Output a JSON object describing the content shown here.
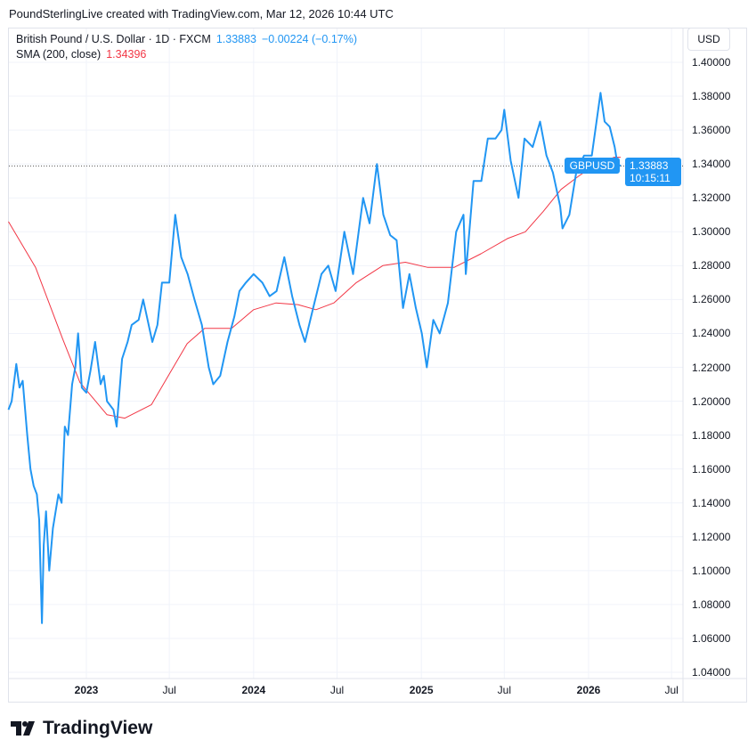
{
  "header": {
    "credit": "PoundSterlingLive created with TradingView.com, Mar 12, 2026 10:44 UTC"
  },
  "legend": {
    "instrument": "British Pound / U.S. Dollar · 1D · FXCM",
    "last": "1.33883",
    "change": "−0.00224 (−0.17%)",
    "indicator": "SMA (200, close)",
    "indicator_value": "1.34396"
  },
  "axis": {
    "currency": "USD"
  },
  "price_label": {
    "symbol": "GBPUSD",
    "price": "1.33883",
    "countdown": "10:15:11"
  },
  "logo": {
    "text": "TradingView"
  },
  "colors": {
    "price": "#2196f3",
    "sma": "#f23645",
    "grid": "#f0f3fa"
  },
  "chart_data": {
    "type": "line",
    "title": "British Pound / U.S. Dollar · 1D · FXCM",
    "ylim": [
      1.04,
      1.4
    ],
    "y_scale": "linear",
    "grid": true,
    "y_ticks": [
      "1.40000",
      "1.38000",
      "1.36000",
      "1.34000",
      "1.32000",
      "1.30000",
      "1.28000",
      "1.26000",
      "1.24000",
      "1.22000",
      "1.20000",
      "1.18000",
      "1.16000",
      "1.14000",
      "1.12000",
      "1.10000",
      "1.08000",
      "1.06000",
      "1.04000"
    ],
    "x_ticks": [
      {
        "label": "2023",
        "date": "2023-01-01",
        "year": true
      },
      {
        "label": "Jul",
        "date": "2023-07-01",
        "year": false
      },
      {
        "label": "2024",
        "date": "2024-01-01",
        "year": true
      },
      {
        "label": "Jul",
        "date": "2024-07-01",
        "year": false
      },
      {
        "label": "2025",
        "date": "2025-01-01",
        "year": true
      },
      {
        "label": "Jul",
        "date": "2025-07-01",
        "year": false
      },
      {
        "label": "2026",
        "date": "2026-01-01",
        "year": true
      },
      {
        "label": "Jul",
        "date": "2026-07-01",
        "year": false
      }
    ],
    "series": [
      {
        "name": "GBPUSD",
        "color": "#2196f3",
        "points": [
          [
            "2022-07-15",
            1.195
          ],
          [
            "2022-07-22",
            1.2
          ],
          [
            "2022-08-01",
            1.222
          ],
          [
            "2022-08-08",
            1.208
          ],
          [
            "2022-08-15",
            1.212
          ],
          [
            "2022-08-25",
            1.18
          ],
          [
            "2022-09-01",
            1.16
          ],
          [
            "2022-09-08",
            1.15
          ],
          [
            "2022-09-15",
            1.145
          ],
          [
            "2022-09-20",
            1.13
          ],
          [
            "2022-09-26",
            1.069
          ],
          [
            "2022-09-30",
            1.115
          ],
          [
            "2022-10-05",
            1.135
          ],
          [
            "2022-10-12",
            1.1
          ],
          [
            "2022-10-20",
            1.125
          ],
          [
            "2022-11-01",
            1.145
          ],
          [
            "2022-11-08",
            1.14
          ],
          [
            "2022-11-15",
            1.185
          ],
          [
            "2022-11-22",
            1.18
          ],
          [
            "2022-12-01",
            1.21
          ],
          [
            "2022-12-08",
            1.22
          ],
          [
            "2022-12-14",
            1.24
          ],
          [
            "2022-12-22",
            1.208
          ],
          [
            "2023-01-01",
            1.205
          ],
          [
            "2023-01-10",
            1.218
          ],
          [
            "2023-01-20",
            1.235
          ],
          [
            "2023-02-01",
            1.21
          ],
          [
            "2023-02-08",
            1.215
          ],
          [
            "2023-02-15",
            1.2
          ],
          [
            "2023-03-01",
            1.195
          ],
          [
            "2023-03-08",
            1.185
          ],
          [
            "2023-03-20",
            1.225
          ],
          [
            "2023-04-01",
            1.235
          ],
          [
            "2023-04-10",
            1.245
          ],
          [
            "2023-04-25",
            1.248
          ],
          [
            "2023-05-05",
            1.26
          ],
          [
            "2023-05-25",
            1.235
          ],
          [
            "2023-06-05",
            1.245
          ],
          [
            "2023-06-15",
            1.27
          ],
          [
            "2023-07-01",
            1.27
          ],
          [
            "2023-07-14",
            1.31
          ],
          [
            "2023-07-27",
            1.285
          ],
          [
            "2023-08-10",
            1.275
          ],
          [
            "2023-08-25",
            1.26
          ],
          [
            "2023-09-10",
            1.245
          ],
          [
            "2023-09-25",
            1.22
          ],
          [
            "2023-10-05",
            1.21
          ],
          [
            "2023-10-20",
            1.215
          ],
          [
            "2023-11-05",
            1.235
          ],
          [
            "2023-11-20",
            1.25
          ],
          [
            "2023-12-01",
            1.265
          ],
          [
            "2023-12-15",
            1.27
          ],
          [
            "2024-01-01",
            1.275
          ],
          [
            "2024-01-20",
            1.27
          ],
          [
            "2024-02-05",
            1.262
          ],
          [
            "2024-02-20",
            1.265
          ],
          [
            "2024-03-08",
            1.285
          ],
          [
            "2024-03-25",
            1.262
          ],
          [
            "2024-04-10",
            1.245
          ],
          [
            "2024-04-22",
            1.235
          ],
          [
            "2024-05-10",
            1.255
          ],
          [
            "2024-05-28",
            1.275
          ],
          [
            "2024-06-12",
            1.28
          ],
          [
            "2024-06-28",
            1.265
          ],
          [
            "2024-07-17",
            1.3
          ],
          [
            "2024-08-05",
            1.275
          ],
          [
            "2024-08-27",
            1.32
          ],
          [
            "2024-09-10",
            1.305
          ],
          [
            "2024-09-26",
            1.34
          ],
          [
            "2024-10-10",
            1.31
          ],
          [
            "2024-10-25",
            1.298
          ],
          [
            "2024-11-08",
            1.295
          ],
          [
            "2024-11-22",
            1.255
          ],
          [
            "2024-12-06",
            1.275
          ],
          [
            "2024-12-20",
            1.255
          ],
          [
            "2025-01-02",
            1.24
          ],
          [
            "2025-01-13",
            1.22
          ],
          [
            "2025-01-27",
            1.248
          ],
          [
            "2025-02-10",
            1.24
          ],
          [
            "2025-02-28",
            1.258
          ],
          [
            "2025-03-18",
            1.3
          ],
          [
            "2025-04-03",
            1.31
          ],
          [
            "2025-04-08",
            1.275
          ],
          [
            "2025-04-25",
            1.33
          ],
          [
            "2025-05-12",
            1.33
          ],
          [
            "2025-05-26",
            1.355
          ],
          [
            "2025-06-12",
            1.355
          ],
          [
            "2025-06-25",
            1.36
          ],
          [
            "2025-07-01",
            1.372
          ],
          [
            "2025-07-15",
            1.342
          ],
          [
            "2025-08-01",
            1.32
          ],
          [
            "2025-08-14",
            1.355
          ],
          [
            "2025-09-01",
            1.35
          ],
          [
            "2025-09-17",
            1.365
          ],
          [
            "2025-10-01",
            1.345
          ],
          [
            "2025-10-15",
            1.335
          ],
          [
            "2025-10-31",
            1.315
          ],
          [
            "2025-11-05",
            1.302
          ],
          [
            "2025-11-20",
            1.31
          ],
          [
            "2025-12-05",
            1.335
          ],
          [
            "2025-12-22",
            1.345
          ],
          [
            "2026-01-08",
            1.345
          ],
          [
            "2026-01-27",
            1.382
          ],
          [
            "2026-02-05",
            1.365
          ],
          [
            "2026-02-16",
            1.362
          ],
          [
            "2026-02-27",
            1.35
          ],
          [
            "2026-03-05",
            1.34
          ],
          [
            "2026-03-12",
            1.33883
          ]
        ]
      },
      {
        "name": "SMA (200, close)",
        "color": "#f23645",
        "points": [
          [
            "2022-07-15",
            1.306
          ],
          [
            "2022-09-12",
            1.279
          ],
          [
            "2022-11-10",
            1.237
          ],
          [
            "2022-12-18",
            1.211
          ],
          [
            "2023-02-15",
            1.192
          ],
          [
            "2023-03-26",
            1.19
          ],
          [
            "2023-05-23",
            1.198
          ],
          [
            "2023-07-01",
            1.216
          ],
          [
            "2023-08-09",
            1.234
          ],
          [
            "2023-09-16",
            1.243
          ],
          [
            "2023-11-14",
            1.243
          ],
          [
            "2024-01-01",
            1.254
          ],
          [
            "2024-02-19",
            1.258
          ],
          [
            "2024-04-07",
            1.257
          ],
          [
            "2024-05-16",
            1.254
          ],
          [
            "2024-06-24",
            1.258
          ],
          [
            "2024-08-12",
            1.27
          ],
          [
            "2024-10-09",
            1.28
          ],
          [
            "2024-11-27",
            1.282
          ],
          [
            "2025-01-14",
            1.279
          ],
          [
            "2025-03-14",
            1.279
          ],
          [
            "2025-05-11",
            1.287
          ],
          [
            "2025-07-08",
            1.296
          ],
          [
            "2025-08-16",
            1.3
          ],
          [
            "2025-09-24",
            1.312
          ],
          [
            "2025-11-02",
            1.325
          ],
          [
            "2025-12-11",
            1.333
          ],
          [
            "2026-01-18",
            1.34
          ],
          [
            "2026-02-26",
            1.344
          ],
          [
            "2026-03-12",
            1.34396
          ]
        ]
      }
    ]
  }
}
